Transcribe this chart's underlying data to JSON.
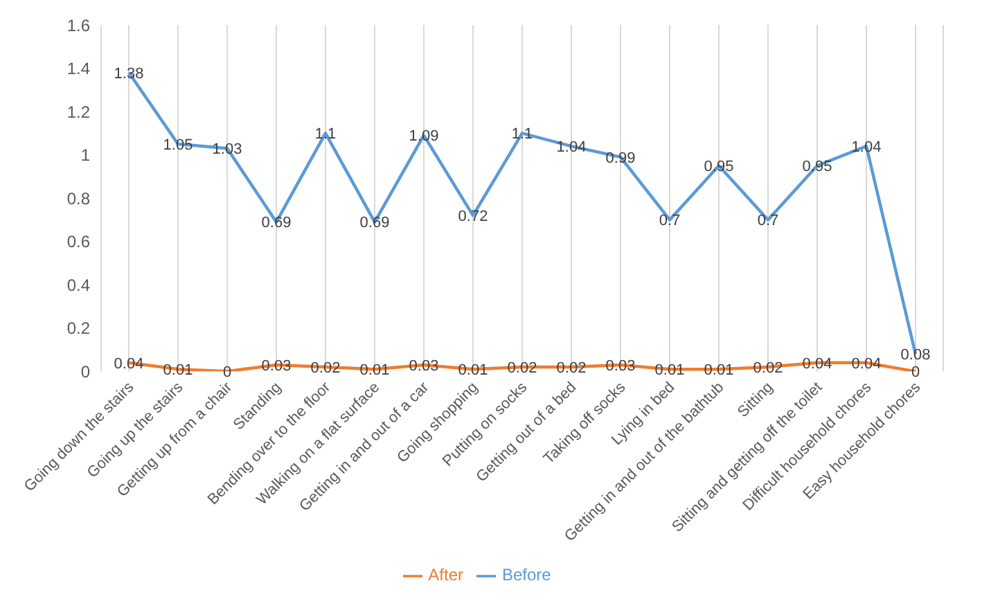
{
  "chart_data": {
    "type": "line",
    "categories": [
      "Going down the stairs",
      "Going up the stairs",
      "Getting up from a chair",
      "Standing",
      "Bending over to the floor",
      "Walking on a flat surface",
      "Getting in and out of a car",
      "Going shopping",
      "Putting on socks",
      "Getting out of a bed",
      "Taking off socks",
      "Lying in bed",
      "Getting in and out of the bathtub",
      "Sitting",
      "Sitting and getting off the toilet",
      "Difficult household chores",
      "Easy household chores"
    ],
    "series": [
      {
        "name": "Before",
        "color": "#5b9bd5",
        "values": [
          1.38,
          1.05,
          1.03,
          0.69,
          1.1,
          0.69,
          1.09,
          0.72,
          1.1,
          1.04,
          0.99,
          0.7,
          0.95,
          0.7,
          0.95,
          1.04,
          0.08
        ]
      },
      {
        "name": "After",
        "color": "#ed7d31",
        "values": [
          0.04,
          0.01,
          0,
          0.03,
          0.02,
          0.01,
          0.03,
          0.01,
          0.02,
          0.02,
          0.03,
          0.01,
          0.01,
          0.02,
          0.04,
          0.04,
          0
        ]
      }
    ],
    "ylim": [
      0,
      1.6
    ],
    "yticks": [
      0,
      0.2,
      0.4,
      0.6,
      0.8,
      1,
      1.2,
      1.4,
      1.6
    ],
    "grid": "x",
    "legend": "bottom",
    "data_labels": true,
    "marker": "none",
    "line_style": "solid"
  }
}
